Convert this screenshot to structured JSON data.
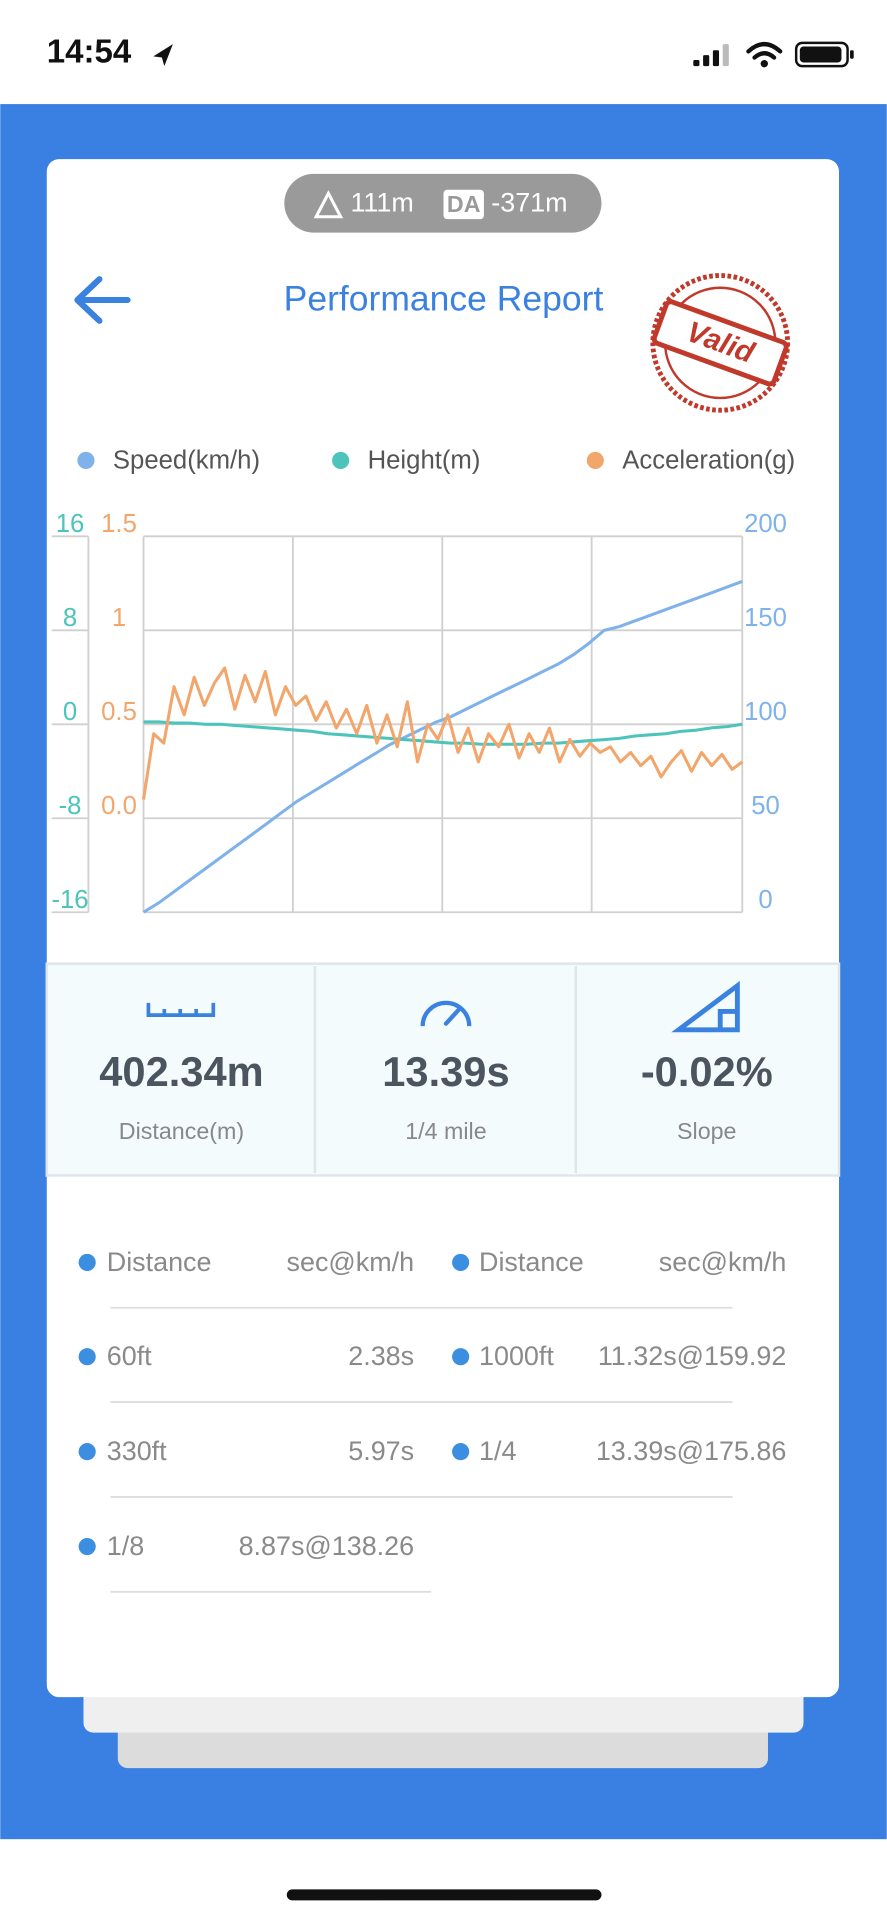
{
  "status_bar": {
    "time": "14:54"
  },
  "altitude": {
    "elevation": "111m",
    "da_label": "DA",
    "density_altitude": "-371m"
  },
  "header": {
    "title": "Performance Report",
    "stamp": "Valid"
  },
  "chart_data": {
    "type": "line",
    "series": [
      {
        "name": "Speed(km/h)",
        "color": "#7fb2ea",
        "axis": "y2",
        "values": [
          0,
          5,
          11,
          17,
          23,
          29,
          35,
          41,
          47,
          53,
          59,
          64,
          69,
          74,
          79,
          84,
          89,
          93,
          97,
          101,
          104,
          108,
          112,
          116,
          120,
          124,
          128,
          132,
          137,
          143,
          150,
          152,
          155,
          158,
          161,
          164,
          167,
          170,
          173,
          176
        ]
      },
      {
        "name": "Height(m)",
        "color": "#4cc4bc",
        "axis": "y",
        "values": [
          0.2,
          0.2,
          0.1,
          0.1,
          0,
          0,
          -0.1,
          -0.2,
          -0.3,
          -0.4,
          -0.5,
          -0.6,
          -0.8,
          -0.9,
          -1.0,
          -1.1,
          -1.2,
          -1.3,
          -1.4,
          -1.5,
          -1.6,
          -1.6,
          -1.7,
          -1.7,
          -1.7,
          -1.7,
          -1.6,
          -1.6,
          -1.5,
          -1.4,
          -1.3,
          -1.2,
          -1.0,
          -0.9,
          -0.8,
          -0.6,
          -0.5,
          -0.3,
          -0.2,
          0
        ]
      },
      {
        "name": "Acceleration(g)",
        "color": "#f2a66c",
        "axis": "y3",
        "values": [
          0.1,
          0.45,
          0.4,
          0.7,
          0.55,
          0.75,
          0.6,
          0.72,
          0.8,
          0.58,
          0.76,
          0.62,
          0.78,
          0.55,
          0.7,
          0.6,
          0.65,
          0.52,
          0.62,
          0.48,
          0.58,
          0.45,
          0.6,
          0.4,
          0.55,
          0.38,
          0.62,
          0.3,
          0.5,
          0.42,
          0.55,
          0.35,
          0.48,
          0.3,
          0.45,
          0.38,
          0.5,
          0.32,
          0.45,
          0.35,
          0.48,
          0.3,
          0.42,
          0.33,
          0.4,
          0.35,
          0.38,
          0.3,
          0.35,
          0.28,
          0.33,
          0.22,
          0.3,
          0.36,
          0.25,
          0.35,
          0.28,
          0.34,
          0.26,
          0.3
        ]
      }
    ],
    "ylim": [
      -16,
      16
    ],
    "yticks": [
      16,
      8,
      0,
      -8,
      -16
    ],
    "y2lim": [
      0,
      200
    ],
    "y2ticks": [
      200,
      150,
      100,
      50,
      0
    ],
    "y3lim": [
      -0.5,
      1.5
    ],
    "y3ticks": [
      1.5,
      1,
      0.5,
      {
        "value": 0,
        "label": "0.0"
      }
    ],
    "grid": true
  },
  "summary": [
    {
      "value": "402.34m",
      "label": "Distance(m)"
    },
    {
      "value": "13.39s",
      "label": "1/4 mile"
    },
    {
      "value": "-0.02%",
      "label": "Slope"
    }
  ],
  "splits": {
    "header": [
      "Distance",
      "sec@km/h",
      "Distance",
      "sec@km/h"
    ],
    "rows": [
      [
        "60ft",
        "2.38s",
        "1000ft",
        "11.32s@159.92"
      ],
      [
        "330ft",
        "5.97s",
        "1/4",
        "13.39s@175.86"
      ],
      [
        "1/8",
        "8.87s@138.26"
      ]
    ]
  }
}
